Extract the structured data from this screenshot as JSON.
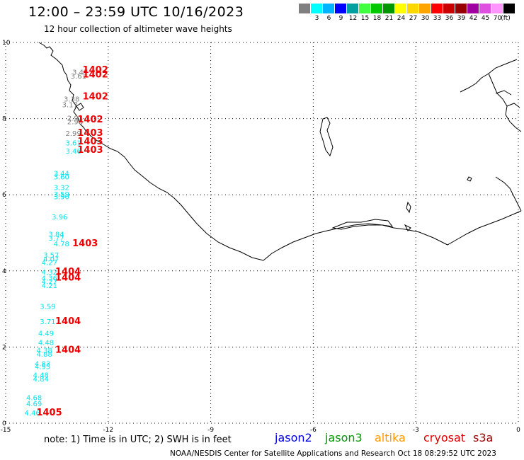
{
  "header": {
    "title": "12:00 – 23:59 UTC 10/16/2023",
    "subtitle": "12 hour collection of altimeter wave heights"
  },
  "color_scale": {
    "unit_label": "(ft)",
    "bins": [
      {
        "color": "#808080",
        "label": ""
      },
      {
        "color": "#00ffff",
        "label": "3"
      },
      {
        "color": "#00b4ff",
        "label": "6"
      },
      {
        "color": "#0000ff",
        "label": "9"
      },
      {
        "color": "#00a0a0",
        "label": "12"
      },
      {
        "color": "#40ff40",
        "label": "15"
      },
      {
        "color": "#00c800",
        "label": "18"
      },
      {
        "color": "#009600",
        "label": "21"
      },
      {
        "color": "#ffff00",
        "label": "24"
      },
      {
        "color": "#ffd700",
        "label": "27"
      },
      {
        "color": "#ffa500",
        "label": "30"
      },
      {
        "color": "#ff0000",
        "label": "33"
      },
      {
        "color": "#c80000",
        "label": "36"
      },
      {
        "color": "#960000",
        "label": "39"
      },
      {
        "color": "#a000a0",
        "label": "42"
      },
      {
        "color": "#e050e0",
        "label": "45"
      },
      {
        "color": "#ff96ff",
        "label": "70"
      },
      {
        "color": "#000000",
        "label": ""
      }
    ]
  },
  "map": {
    "x_range": [
      -15,
      0
    ],
    "y_range": [
      0,
      10
    ],
    "x_ticks": [
      {
        "value": -15,
        "label": "-15"
      },
      {
        "value": -12,
        "label": "-12"
      },
      {
        "value": -9,
        "label": "-9"
      },
      {
        "value": -6,
        "label": "-6"
      },
      {
        "value": -3,
        "label": "-3"
      },
      {
        "value": 0,
        "label": "0"
      }
    ],
    "y_ticks": [
      {
        "value": 0,
        "label": "0"
      },
      {
        "value": 2,
        "label": "2"
      },
      {
        "value": 4,
        "label": "4"
      },
      {
        "value": 6,
        "label": "6"
      },
      {
        "value": 8,
        "label": "8"
      },
      {
        "value": 10,
        "label": "10"
      }
    ],
    "coast_color": "#000000",
    "grid": "dotted"
  },
  "observations": [
    {
      "lon": -13.05,
      "lat": 9.15,
      "text": "3.47",
      "color": "#808080"
    },
    {
      "lon": -13.1,
      "lat": 9.05,
      "text": "3.61",
      "color": "#808080"
    },
    {
      "lon": -13.3,
      "lat": 8.45,
      "text": "3.38",
      "color": "#808080"
    },
    {
      "lon": -13.35,
      "lat": 8.3,
      "text": "3.17",
      "color": "#808080"
    },
    {
      "lon": -13.2,
      "lat": 7.95,
      "text": "2.93",
      "color": "#808080"
    },
    {
      "lon": -13.2,
      "lat": 7.85,
      "text": "2.98",
      "color": "#808080"
    },
    {
      "lon": -13.25,
      "lat": 7.55,
      "text": "2.99",
      "color": "#808080"
    },
    {
      "lon": -13.25,
      "lat": 7.3,
      "text": "3.61",
      "color": "#00e5ee"
    },
    {
      "lon": -13.25,
      "lat": 7.08,
      "text": "3.46",
      "color": "#00e5ee"
    },
    {
      "lon": -13.6,
      "lat": 6.5,
      "text": "3.44",
      "color": "#00e5ee"
    },
    {
      "lon": -13.6,
      "lat": 6.4,
      "text": "3.60",
      "color": "#00e5ee"
    },
    {
      "lon": -13.6,
      "lat": 6.12,
      "text": "3.32",
      "color": "#00e5ee"
    },
    {
      "lon": -13.6,
      "lat": 5.95,
      "text": "3.59",
      "color": "#00e5ee"
    },
    {
      "lon": -13.6,
      "lat": 5.88,
      "text": "3.90",
      "color": "#00e5ee"
    },
    {
      "lon": -13.65,
      "lat": 5.35,
      "text": "3.96",
      "color": "#00e5ee"
    },
    {
      "lon": -13.75,
      "lat": 4.9,
      "text": "3.84",
      "color": "#00e5ee"
    },
    {
      "lon": -13.75,
      "lat": 4.8,
      "text": "3.77",
      "color": "#00e5ee"
    },
    {
      "lon": -13.6,
      "lat": 4.65,
      "text": "4.78",
      "color": "#00e5ee"
    },
    {
      "lon": -13.9,
      "lat": 4.35,
      "text": "3.57",
      "color": "#00e5ee"
    },
    {
      "lon": -13.9,
      "lat": 4.25,
      "text": "4.07",
      "color": "#00e5ee"
    },
    {
      "lon": -13.95,
      "lat": 4.15,
      "text": "4.27",
      "color": "#00e5ee"
    },
    {
      "lon": -13.95,
      "lat": 3.9,
      "text": "4.32",
      "color": "#00e5ee"
    },
    {
      "lon": -13.95,
      "lat": 3.75,
      "text": "4.36",
      "color": "#00e5ee"
    },
    {
      "lon": -13.95,
      "lat": 3.65,
      "text": "4.27",
      "color": "#00e5ee"
    },
    {
      "lon": -13.95,
      "lat": 3.55,
      "text": "4.21",
      "color": "#00e5ee"
    },
    {
      "lon": -14.0,
      "lat": 3.0,
      "text": "3.59",
      "color": "#00e5ee"
    },
    {
      "lon": -14.0,
      "lat": 2.6,
      "text": "3.71",
      "color": "#00e5ee"
    },
    {
      "lon": -14.05,
      "lat": 2.3,
      "text": "4.49",
      "color": "#00e5ee"
    },
    {
      "lon": -14.05,
      "lat": 2.05,
      "text": "4.48",
      "color": "#00e5ee"
    },
    {
      "lon": -14.1,
      "lat": 1.85,
      "text": "4.38",
      "color": "#00e5ee"
    },
    {
      "lon": -14.1,
      "lat": 1.75,
      "text": "4.88",
      "color": "#00e5ee"
    },
    {
      "lon": -14.15,
      "lat": 1.5,
      "text": "4.83",
      "color": "#00e5ee"
    },
    {
      "lon": -14.15,
      "lat": 1.42,
      "text": "4.95",
      "color": "#00e5ee"
    },
    {
      "lon": -14.2,
      "lat": 1.2,
      "text": "4.48",
      "color": "#00e5ee"
    },
    {
      "lon": -14.2,
      "lat": 1.1,
      "text": "4.84",
      "color": "#00e5ee"
    },
    {
      "lon": -14.4,
      "lat": 0.6,
      "text": "4.68",
      "color": "#00e5ee"
    },
    {
      "lon": -14.4,
      "lat": 0.45,
      "text": "4.69",
      "color": "#00e5ee"
    },
    {
      "lon": -14.45,
      "lat": 0.2,
      "text": "4.46",
      "color": "#00e5ee"
    },
    {
      "lon": -12.75,
      "lat": 9.2,
      "text": "1402",
      "color": "#ee0000"
    },
    {
      "lon": -12.75,
      "lat": 9.08,
      "text": "1402",
      "color": "#ee0000"
    },
    {
      "lon": -12.75,
      "lat": 8.5,
      "text": "1402",
      "color": "#ee0000"
    },
    {
      "lon": -12.9,
      "lat": 7.9,
      "text": "1402",
      "color": "#ee0000"
    },
    {
      "lon": -12.9,
      "lat": 7.55,
      "text": "1403",
      "color": "#ee0000"
    },
    {
      "lon": -12.9,
      "lat": 7.32,
      "text": "1403",
      "color": "#ee0000"
    },
    {
      "lon": -12.9,
      "lat": 7.1,
      "text": "1403",
      "color": "#ee0000"
    },
    {
      "lon": -13.05,
      "lat": 4.65,
      "text": "1403",
      "color": "#ee0000"
    },
    {
      "lon": -13.55,
      "lat": 3.9,
      "text": "1404",
      "color": "#ee0000"
    },
    {
      "lon": -13.55,
      "lat": 3.75,
      "text": "1404",
      "color": "#ee0000"
    },
    {
      "lon": -13.55,
      "lat": 2.6,
      "text": "1404",
      "color": "#ee0000"
    },
    {
      "lon": -13.55,
      "lat": 1.85,
      "text": "1404",
      "color": "#ee0000"
    },
    {
      "lon": -14.1,
      "lat": 0.2,
      "text": "1405",
      "color": "#ee0000"
    }
  ],
  "footer": {
    "note": "note:  1) Time is in UTC;  2) SWH is in feet",
    "satellites": [
      {
        "name": "jason2",
        "color": "#0000dd"
      },
      {
        "name": "jason3",
        "color": "#009900"
      },
      {
        "name": "altika",
        "color": "#ff9900"
      },
      {
        "name": "cryosat",
        "color": "#dd0000"
      },
      {
        "name": "s3a",
        "color": "#990000"
      }
    ],
    "credit": "NOAA/NESDIS Center for Satellite Applications and Research    Oct 18 08:29:52 UTC 2023"
  }
}
